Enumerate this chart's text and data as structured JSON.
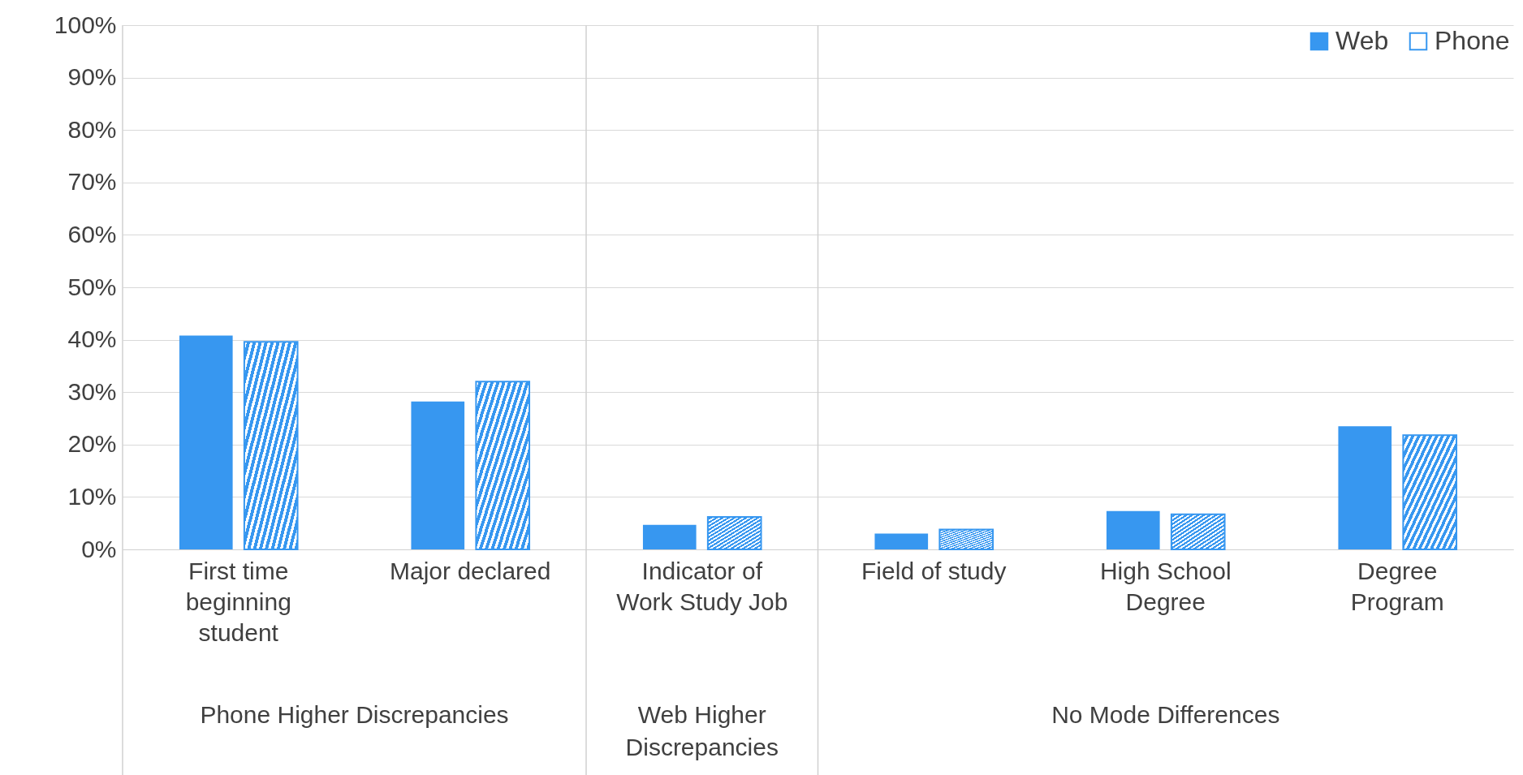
{
  "chart_data": {
    "type": "bar",
    "categories": [
      "First time\nbeginning\nstudent",
      "Major declared",
      "Indicator of\nWork Study Job",
      "Field of study",
      "High School\nDegree",
      "Degree\nProgram"
    ],
    "annotations": [
      "Phone Higher Discrepancies",
      "Web Higher\nDiscrepancies",
      "No Mode Differences"
    ],
    "series": [
      {
        "name": "Web",
        "color": "#3797f0",
        "values": [
          40.8,
          28.2,
          4.7,
          3.0,
          7.3,
          23.5
        ]
      },
      {
        "name": "Phone",
        "color": "#3797f0",
        "values": [
          39.6,
          32.0,
          6.2,
          3.8,
          6.7,
          21.8
        ]
      }
    ],
    "ylim": [
      0,
      100
    ],
    "yticks": [
      {
        "value": 0,
        "label": "0%"
      },
      {
        "value": 10,
        "label": "10%"
      },
      {
        "value": 20,
        "label": "20%"
      },
      {
        "value": 30,
        "label": "30%"
      },
      {
        "value": 40,
        "label": "40%"
      },
      {
        "value": 50,
        "label": "50%"
      },
      {
        "value": 60,
        "label": "60%"
      },
      {
        "value": 70,
        "label": "70%"
      },
      {
        "value": 80,
        "label": "80%"
      },
      {
        "value": 90,
        "label": "90%"
      },
      {
        "value": 100,
        "label": "100%"
      }
    ],
    "grid": "y",
    "legend": "top right"
  }
}
